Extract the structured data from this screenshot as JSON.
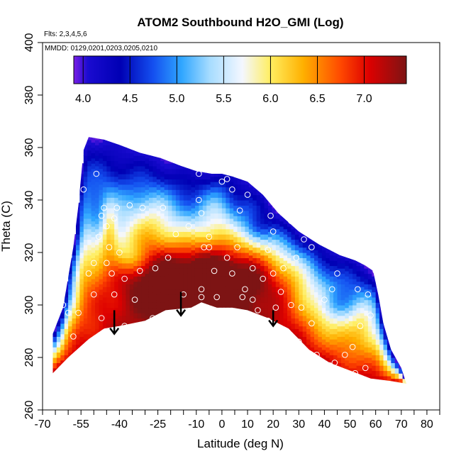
{
  "chart_data": {
    "type": "heatmap",
    "title": "ATOM2 Southbound H2O_GMI (Log)",
    "flights_note": "Flts: 2,3,4,5,6",
    "dates_note": "MMDD: 0129,0201,0203,0205,0210",
    "xlabel": "Latitude (deg N)",
    "ylabel": "Theta (C)",
    "xlim": [
      -70,
      85
    ],
    "ylim": [
      260,
      400
    ],
    "x_ticks": [
      -70,
      -55,
      -40,
      -25,
      -10,
      0,
      10,
      20,
      30,
      40,
      50,
      60,
      70,
      80
    ],
    "x_tick_labels": [
      "-70",
      "-55",
      "-40",
      "-25",
      "-10",
      "0",
      "10",
      "20",
      "30",
      "40",
      "50",
      "60",
      "70",
      "80"
    ],
    "x_minor_ticks": [
      -65,
      -60,
      -50,
      -45,
      -35,
      -30,
      -20,
      -15,
      -5,
      5,
      15,
      25,
      35,
      45,
      55,
      65,
      75,
      85
    ],
    "y_ticks": [
      260,
      280,
      300,
      320,
      340,
      360,
      380,
      400
    ],
    "y_tick_labels": [
      "260",
      "280",
      "300",
      "320",
      "340",
      "360",
      "380",
      "400"
    ],
    "colorbar": {
      "range": [
        3.9,
        7.45
      ],
      "ticks": [
        4.0,
        4.5,
        5.0,
        5.5,
        6.0,
        6.5,
        7.0
      ],
      "tick_labels": [
        "4.0",
        "4.5",
        "5.0",
        "5.5",
        "6.0",
        "6.5",
        "7.0"
      ],
      "stops": [
        {
          "v": 3.9,
          "c": "#7a1fe6"
        },
        {
          "v": 4.05,
          "c": "#1a0bd0"
        },
        {
          "v": 4.4,
          "c": "#0000b4"
        },
        {
          "v": 4.75,
          "c": "#1450f0"
        },
        {
          "v": 5.05,
          "c": "#2fa6ff"
        },
        {
          "v": 5.35,
          "c": "#a6dcff"
        },
        {
          "v": 5.7,
          "c": "#f4f7ff"
        },
        {
          "v": 6.0,
          "c": "#ffee60"
        },
        {
          "v": 6.35,
          "c": "#ffb000"
        },
        {
          "v": 6.75,
          "c": "#ff4800"
        },
        {
          "v": 7.05,
          "c": "#dd0000"
        },
        {
          "v": 7.45,
          "c": "#7d1414"
        }
      ]
    },
    "domain": {
      "top": [
        [
          -66,
          289
        ],
        [
          -62,
          299
        ],
        [
          -58,
          322
        ],
        [
          -56,
          338
        ],
        [
          -54,
          359
        ],
        [
          -52,
          364
        ],
        [
          -46,
          363
        ],
        [
          -40,
          361
        ],
        [
          -32,
          358
        ],
        [
          -24,
          356
        ],
        [
          -16,
          353
        ],
        [
          -10,
          351
        ],
        [
          -4,
          350
        ],
        [
          0,
          350
        ],
        [
          4,
          349
        ],
        [
          10,
          347
        ],
        [
          16,
          342
        ],
        [
          22,
          335
        ],
        [
          30,
          328
        ],
        [
          38,
          323
        ],
        [
          46,
          319
        ],
        [
          52,
          317
        ],
        [
          56,
          315
        ],
        [
          59,
          313
        ],
        [
          61,
          304
        ],
        [
          63,
          293
        ],
        [
          66,
          283
        ],
        [
          70,
          276
        ],
        [
          72,
          270
        ]
      ],
      "bottom": [
        [
          -66,
          274
        ],
        [
          -60,
          280
        ],
        [
          -52,
          287
        ],
        [
          -46,
          291
        ],
        [
          -40,
          292
        ],
        [
          -30,
          294
        ],
        [
          -22,
          298
        ],
        [
          -12,
          299
        ],
        [
          -8,
          301
        ],
        [
          -2,
          299
        ],
        [
          4,
          299
        ],
        [
          10,
          298
        ],
        [
          18,
          295
        ],
        [
          26,
          291
        ],
        [
          34,
          283
        ],
        [
          42,
          278
        ],
        [
          50,
          275
        ],
        [
          58,
          272
        ],
        [
          66,
          271
        ],
        [
          72,
          270
        ]
      ]
    },
    "field_centers": [
      {
        "x": -20,
        "y": 310,
        "sx": 24,
        "sy": 14,
        "v": 2.4
      },
      {
        "x": 5,
        "y": 312,
        "sx": 18,
        "sy": 12,
        "v": 1.6
      },
      {
        "x": -2,
        "y": 335,
        "sx": 6,
        "sy": 16,
        "v": 0.8
      },
      {
        "x": -28,
        "y": 333,
        "sx": 8,
        "sy": 12,
        "v": 0.9
      },
      {
        "x": 25,
        "y": 310,
        "sx": 14,
        "sy": 14,
        "v": 0.8
      },
      {
        "x": -44,
        "y": 330,
        "sx": 3,
        "sy": 10,
        "v": 1.2
      },
      {
        "x": 55,
        "y": 295,
        "sx": 4,
        "sy": 8,
        "v": 0.6
      },
      {
        "x": -36,
        "y": 318,
        "sx": 6,
        "sy": 6,
        "v": -0.8
      },
      {
        "x": -48,
        "y": 330,
        "sx": 5,
        "sy": 8,
        "v": -0.7
      },
      {
        "x": 15,
        "y": 330,
        "sx": 6,
        "sy": 6,
        "v": -0.6
      },
      {
        "x": 44,
        "y": 300,
        "sx": 6,
        "sy": 6,
        "v": -0.8
      }
    ],
    "observations": [
      [
        -54,
        344
      ],
      [
        -49,
        350
      ],
      [
        -46,
        337
      ],
      [
        -41,
        337
      ],
      [
        -36,
        338
      ],
      [
        -31,
        337
      ],
      [
        -23,
        337
      ],
      [
        -47,
        334
      ],
      [
        -45,
        330
      ],
      [
        -42,
        333
      ],
      [
        -48,
        326
      ],
      [
        -44,
        322
      ],
      [
        -40,
        320
      ],
      [
        -45,
        316
      ],
      [
        -43,
        312
      ],
      [
        -50,
        316
      ],
      [
        -52,
        312
      ],
      [
        -50,
        304
      ],
      [
        -56,
        297
      ],
      [
        -47,
        295
      ],
      [
        -38,
        292
      ],
      [
        -27,
        295
      ],
      [
        -32,
        313
      ],
      [
        -26,
        314
      ],
      [
        -21,
        318
      ],
      [
        -18,
        327
      ],
      [
        -13,
        330
      ],
      [
        -9,
        340
      ],
      [
        -9,
        350
      ],
      [
        -8,
        335
      ],
      [
        -7,
        322
      ],
      [
        -5,
        322
      ],
      [
        -8,
        306
      ],
      [
        -8,
        303
      ],
      [
        -12,
        297
      ],
      [
        -2,
        303
      ],
      [
        -3,
        313
      ],
      [
        -5,
        326
      ],
      [
        0,
        347
      ],
      [
        2,
        348
      ],
      [
        4,
        344
      ],
      [
        7,
        336
      ],
      [
        10,
        342
      ],
      [
        14,
        347
      ],
      [
        17,
        348
      ],
      [
        19,
        334
      ],
      [
        20,
        328
      ],
      [
        24,
        338
      ],
      [
        27,
        332
      ],
      [
        30,
        335
      ],
      [
        32,
        325
      ],
      [
        35,
        322
      ],
      [
        29,
        318
      ],
      [
        24,
        314
      ],
      [
        20,
        312
      ],
      [
        16,
        310
      ],
      [
        12,
        302
      ],
      [
        9,
        306
      ],
      [
        4,
        312
      ],
      [
        2,
        318
      ],
      [
        6,
        322
      ],
      [
        12,
        314
      ],
      [
        18,
        321
      ],
      [
        23,
        305
      ],
      [
        27,
        300
      ],
      [
        31,
        299
      ],
      [
        35,
        293
      ],
      [
        40,
        302
      ],
      [
        43,
        306
      ],
      [
        45,
        312
      ],
      [
        50,
        321
      ],
      [
        55,
        317
      ],
      [
        60,
        313
      ],
      [
        53,
        306
      ],
      [
        57,
        304
      ],
      [
        58,
        296
      ],
      [
        54,
        292
      ],
      [
        51,
        284
      ],
      [
        48,
        281
      ],
      [
        42,
        277
      ],
      [
        37,
        281
      ],
      [
        30,
        286
      ],
      [
        24,
        290
      ],
      [
        18,
        294
      ],
      [
        21,
        299
      ],
      [
        14,
        298
      ],
      [
        8,
        303
      ],
      [
        -15,
        304
      ],
      [
        -34,
        302
      ],
      [
        -42,
        304
      ],
      [
        -38,
        310
      ],
      [
        56,
        276
      ],
      [
        52,
        274
      ],
      [
        44,
        278
      ],
      [
        -60,
        297
      ],
      [
        -62,
        300
      ],
      [
        -58,
        288
      ]
    ],
    "arrows": [
      {
        "x": -42,
        "y_from": 298,
        "y_to": 289
      },
      {
        "x": -16,
        "y_from": 305,
        "y_to": 296
      },
      {
        "x": 20,
        "y_from": 298,
        "y_to": 292
      }
    ]
  }
}
